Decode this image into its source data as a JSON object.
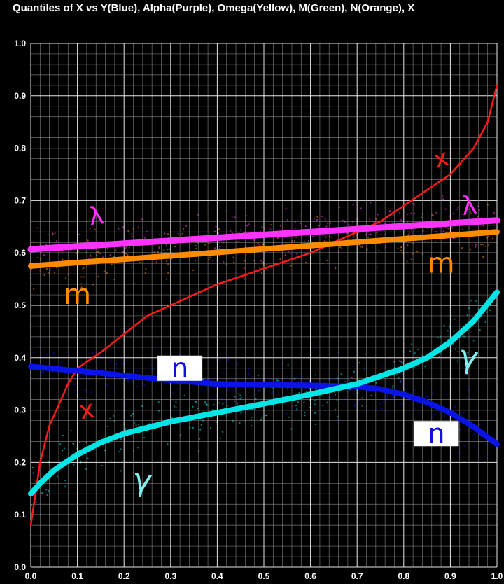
{
  "chart_data": {
    "type": "line",
    "title": "Quantiles of X vs Y(Blue), Alpha(Purple), Omega(Yellow), M(Green), N(Orange), X",
    "xlabel": "",
    "ylabel": "",
    "xlim": [
      0,
      1
    ],
    "ylim": [
      0,
      1
    ],
    "grid": true,
    "x_ticks": [
      "0.0",
      "0.1",
      "0.2",
      "0.3",
      "0.4",
      "0.5",
      "0.6",
      "0.7",
      "0.8",
      "0.9",
      "1.0"
    ],
    "y_ticks": [
      "0.0",
      "0.1",
      "0.2",
      "0.3",
      "0.4",
      "0.5",
      "0.6",
      "0.7",
      "0.8",
      "0.9",
      "1.0"
    ],
    "series": [
      {
        "key": "x",
        "color": "#ff1a1a",
        "x": [
          0,
          0.02,
          0.04,
          0.06,
          0.08,
          0.1,
          0.15,
          0.2,
          0.25,
          0.3,
          0.35,
          0.4,
          0.45,
          0.5,
          0.55,
          0.6,
          0.65,
          0.7,
          0.75,
          0.8,
          0.85,
          0.9,
          0.95,
          0.98,
          1.0
        ],
        "y": [
          0.08,
          0.2,
          0.27,
          0.31,
          0.35,
          0.38,
          0.41,
          0.445,
          0.48,
          0.5,
          0.52,
          0.54,
          0.555,
          0.57,
          0.585,
          0.6,
          0.62,
          0.64,
          0.66,
          0.69,
          0.72,
          0.75,
          0.8,
          0.85,
          0.92
        ]
      },
      {
        "key": "alpha",
        "color": "#ff33ff",
        "x": [
          0,
          1
        ],
        "y": [
          0.607,
          0.662
        ]
      },
      {
        "key": "m",
        "color": "#ff8c00",
        "x": [
          0,
          1
        ],
        "y": [
          0.575,
          0.64
        ]
      },
      {
        "key": "n",
        "color": "#0a14e6",
        "x": [
          0,
          0.1,
          0.2,
          0.3,
          0.4,
          0.5,
          0.6,
          0.7,
          0.75,
          0.8,
          0.85,
          0.9,
          0.95,
          1.0
        ],
        "y": [
          0.383,
          0.375,
          0.366,
          0.357,
          0.35,
          0.348,
          0.347,
          0.345,
          0.34,
          0.33,
          0.315,
          0.295,
          0.268,
          0.235
        ]
      },
      {
        "key": "y",
        "color": "#00e5e5",
        "x": [
          0,
          0.02,
          0.05,
          0.1,
          0.15,
          0.2,
          0.3,
          0.4,
          0.5,
          0.6,
          0.7,
          0.8,
          0.85,
          0.9,
          0.95,
          1.0
        ],
        "y": [
          0.14,
          0.16,
          0.185,
          0.215,
          0.238,
          0.255,
          0.278,
          0.295,
          0.312,
          0.33,
          0.35,
          0.38,
          0.4,
          0.43,
          0.47,
          0.525
        ]
      }
    ],
    "annotations": [
      {
        "text": "x",
        "color": "#ff1a1a"
      },
      {
        "text": "x",
        "color": "#ff1a1a"
      },
      {
        "text": "λ",
        "color": "#ff33ff"
      },
      {
        "text": "λ",
        "color": "#ff33ff"
      },
      {
        "text": "m",
        "color": "#ff8c00"
      },
      {
        "text": "m",
        "color": "#ff8c00"
      },
      {
        "text": "n",
        "color": "#1010e0"
      },
      {
        "text": "n",
        "color": "#1010e0"
      },
      {
        "text": "γ",
        "color": "#80f0f0"
      },
      {
        "text": "γ",
        "color": "#80f0f0"
      }
    ]
  }
}
